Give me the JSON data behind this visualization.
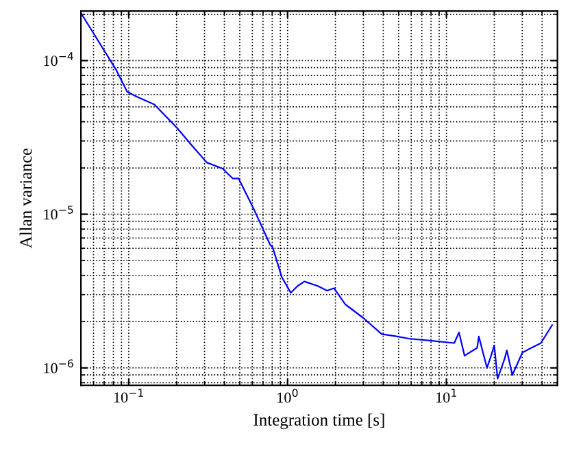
{
  "chart_data": {
    "type": "line",
    "xlabel": "Integration time [s]",
    "ylabel": "Allan variance",
    "log": "xy",
    "grid": true,
    "xlim": [
      0.05,
      50
    ],
    "ylim": [
      7.7e-07,
      0.00021
    ],
    "xticks": [
      {
        "value": 0.1,
        "label": "10$^{−1}$"
      },
      {
        "value": 1,
        "label": "10$^{0}$"
      },
      {
        "value": 10,
        "label": "10$^{1}$"
      }
    ],
    "yticks": [
      {
        "value": 1e-06,
        "label": "10$^{−6}$"
      },
      {
        "value": 1e-05,
        "label": "10$^{−5}$"
      },
      {
        "value": 0.0001,
        "label": "10$^{−4}$"
      }
    ],
    "series": [
      {
        "color": "#0000ff",
        "x": [
          0.05,
          0.0828,
          0.0977,
          0.111,
          0.145,
          0.202,
          0.246,
          0.31,
          0.39,
          0.451,
          0.491,
          0.618,
          0.778,
          0.805,
          0.918,
          1.047,
          1.156,
          1.276,
          1.55,
          1.77,
          1.96,
          2.31,
          3.0,
          3.91,
          4.76,
          5.8,
          8.07,
          11.2,
          12,
          13,
          15.6,
          16,
          18,
          19,
          20,
          21,
          23.2,
          24,
          26,
          30.1,
          39.3,
          46.3
        ],
        "values": [
          0.000204,
          8.8e-05,
          6.27e-05,
          5.86e-05,
          5.18e-05,
          3.63e-05,
          2.85e-05,
          2.17e-05,
          1.98e-05,
          1.71e-05,
          1.71e-05,
          1.06e-05,
          6.3e-06,
          6.1e-06,
          3.91e-06,
          3.08e-06,
          3.41e-06,
          3.65e-06,
          3.41e-06,
          3.18e-06,
          3.3e-06,
          2.59e-06,
          2.11e-06,
          1.66e-06,
          1.61e-06,
          1.55e-06,
          1.5e-06,
          1.45e-06,
          1.7e-06,
          1.2e-06,
          1.35e-06,
          1.6e-06,
          1e-06,
          1.18e-06,
          1.4e-06,
          8.5e-07,
          1.14e-06,
          1.3e-06,
          9e-07,
          1.26e-06,
          1.45e-06,
          1.9e-06
        ]
      }
    ]
  }
}
